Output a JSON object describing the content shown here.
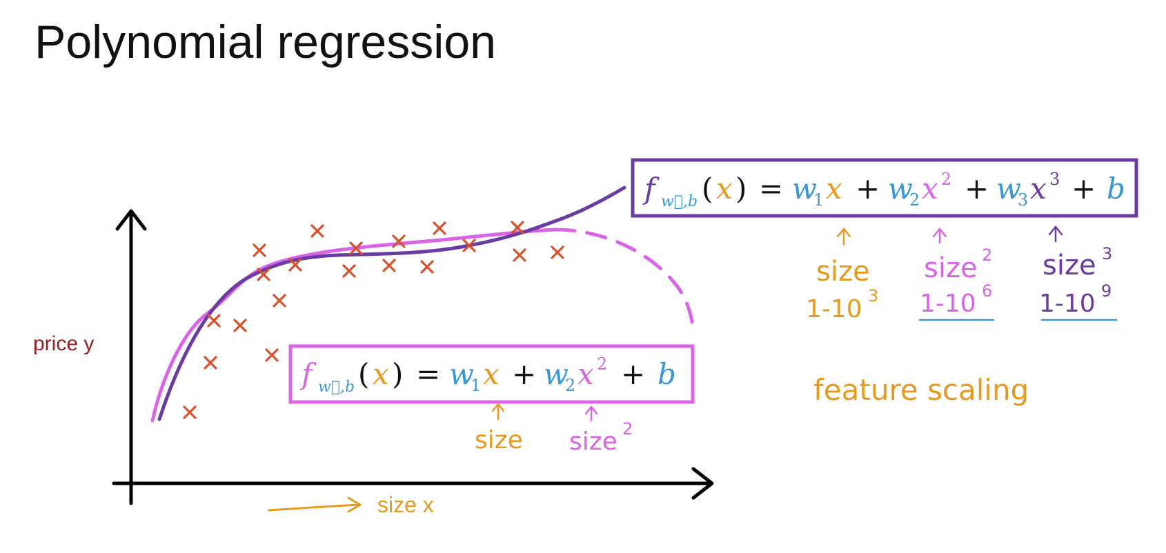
{
  "slide": {
    "title": "Polynomial regression"
  },
  "graph": {
    "y_axis_label": "price y",
    "x_axis_label": "size x"
  },
  "data_points": [
    [
      275,
      598
    ],
    [
      305,
      526
    ],
    [
      310,
      465
    ],
    [
      348,
      472
    ],
    [
      376,
      363
    ],
    [
      382,
      398
    ],
    [
      394,
      515
    ],
    [
      405,
      436
    ],
    [
      428,
      384
    ],
    [
      460,
      335
    ],
    [
      506,
      393
    ],
    [
      516,
      360
    ],
    [
      564,
      385
    ],
    [
      578,
      350
    ],
    [
      619,
      387
    ],
    [
      637,
      331
    ],
    [
      680,
      356
    ],
    [
      753,
      370
    ],
    [
      750,
      330
    ],
    [
      808,
      366
    ]
  ],
  "colors": {
    "point": "#d9512a",
    "cubic": "#6a3ba0",
    "quadratic": "#d964e6",
    "orange": "#e69a1e",
    "blue": "#3a97d6",
    "axis": "#000000",
    "price_label": "#9a1c1c"
  },
  "formula_quadratic": {
    "f": "f",
    "sub": "w⃗,b",
    "x_arg": "x",
    "eq": "=",
    "w1": "w",
    "w1_sub": "1",
    "x1": "x",
    "plus1": "+",
    "w2": "w",
    "w2_sub": "2",
    "x2": "x",
    "x2_pow": "2",
    "plus2": "+",
    "b": "b",
    "paren_open": "(",
    "paren_close": ")",
    "ann_size": "size",
    "ann_size2": "size",
    "ann_size2_pow": "2"
  },
  "formula_cubic": {
    "f": "f",
    "sub": "w⃗,b",
    "x_arg": "x",
    "eq": "=",
    "w1": "w",
    "w1_sub": "1",
    "x1": "x",
    "plus1": "+",
    "w2": "w",
    "w2_sub": "2",
    "x2": "x",
    "x2_pow": "2",
    "plus2": "+",
    "w3": "w",
    "w3_sub": "3",
    "x3": "x",
    "x3_pow": "3",
    "plus3": "+",
    "b": "b",
    "paren_open": "(",
    "paren_close": ")"
  },
  "cubic_annotations": {
    "size": "size",
    "range1": "1-10",
    "range1_pow": "3",
    "size2": "size",
    "size2_pow": "2",
    "range2": "1-10",
    "range2_pow": "6",
    "size3": "size",
    "size3_pow": "3",
    "range3": "1-10",
    "range3_pow": "9"
  },
  "feature_scaling": "feature scaling"
}
